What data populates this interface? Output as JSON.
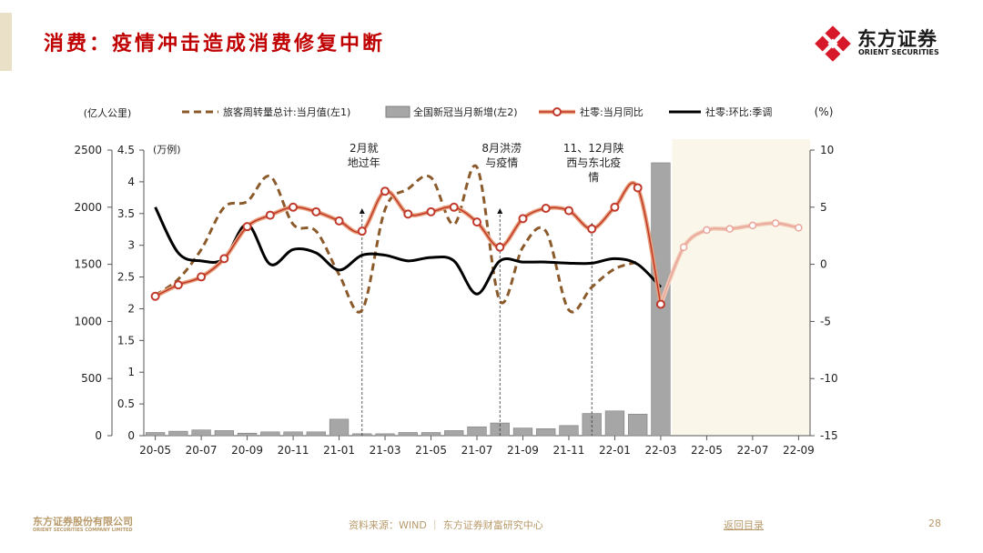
{
  "slide": {
    "title": "消费：疫情冲击造成消费修复中断",
    "logo_cn": "东方证券",
    "logo_en": "ORIENT SECURITIES",
    "footer_company": "东方证券股份有限公司",
    "footer_company_en": "ORIENT SECURITIES COMPANY LIMITED",
    "footer_source": "资料来源：WIND ｜ 东方证券财富研究中心",
    "footer_back": "返回目录",
    "page_number": "28",
    "colors": {
      "title": "#c00000",
      "accent": "#eadfc7",
      "footer": "#b89a6a",
      "logo_red": "#d7182a"
    }
  },
  "chart_data": {
    "type": "line",
    "unit_left1": "(亿人公里)",
    "unit_left2": "(万例)",
    "unit_right": "(%)",
    "x_ticks": [
      "20-05",
      "20-07",
      "20-09",
      "20-11",
      "21-01",
      "21-03",
      "21-05",
      "21-07",
      "21-09",
      "21-11",
      "22-01",
      "22-03",
      "22-05",
      "22-07",
      "22-09"
    ],
    "months": [
      "20-05",
      "20-06",
      "20-07",
      "20-08",
      "20-09",
      "20-10",
      "20-11",
      "20-12",
      "21-01",
      "21-02",
      "21-03",
      "21-04",
      "21-05",
      "21-06",
      "21-07",
      "21-08",
      "21-09",
      "21-10",
      "21-11",
      "21-12",
      "22-01",
      "22-02",
      "22-03",
      "22-04",
      "22-05",
      "22-06",
      "22-07",
      "22-08",
      "22-09"
    ],
    "y_left1": {
      "min": 0,
      "max": 2500,
      "ticks": [
        0,
        500,
        1000,
        1500,
        2000,
        2500
      ]
    },
    "y_left2": {
      "min": 0,
      "max": 4.5,
      "ticks": [
        "0",
        "0.5",
        "1",
        "1.5",
        "2",
        "2.5",
        "3",
        "3.5",
        "4",
        "4.5"
      ]
    },
    "y_right": {
      "min": -15,
      "max": 10,
      "ticks": [
        -15,
        -10,
        -5,
        0,
        5,
        10
      ]
    },
    "forecast_start": "22-04",
    "forecast_color": "#fbf6ea",
    "series": [
      {
        "name": "旅客周转量总计:当月值(左1)",
        "style": "dashed",
        "axis": "left1",
        "color": "#8b5a2b",
        "values": [
          1230,
          1370,
          1630,
          2000,
          2050,
          2270,
          1850,
          1790,
          1410,
          1100,
          1980,
          2160,
          2260,
          1850,
          2350,
          1180,
          1650,
          1790,
          1100,
          1300,
          1460,
          1520,
          null,
          null,
          null,
          null,
          null,
          null,
          null
        ]
      },
      {
        "name": "全国新冠当月新增(左2)",
        "style": "bar",
        "axis": "left2",
        "color": "#a6a6a6",
        "values": [
          0.05,
          0.07,
          0.09,
          0.08,
          0.04,
          0.06,
          0.06,
          0.06,
          0.26,
          0.03,
          0.03,
          0.05,
          0.05,
          0.08,
          0.14,
          0.2,
          0.12,
          0.11,
          0.16,
          0.35,
          0.39,
          0.34,
          4.3,
          null,
          null,
          null,
          null,
          null,
          null
        ]
      },
      {
        "name": "社零:当月同比",
        "style": "marker-line",
        "axis": "right",
        "color": "#c0392b",
        "values": [
          -2.8,
          -1.8,
          -1.1,
          0.5,
          3.3,
          4.3,
          5.0,
          4.6,
          3.8,
          2.9,
          6.4,
          4.4,
          4.6,
          5.0,
          3.7,
          1.5,
          4.0,
          4.9,
          4.7,
          3.1,
          5.0,
          6.7,
          -3.5,
          1.5,
          3.0,
          3.1,
          3.4,
          3.6,
          3.2
        ]
      },
      {
        "name": "社零:环比:季调",
        "style": "line",
        "axis": "right",
        "color": "#000000",
        "values": [
          5.0,
          1.0,
          0.3,
          0.5,
          3.5,
          0.0,
          1.3,
          1.0,
          -0.5,
          0.8,
          0.8,
          0.3,
          0.6,
          0.3,
          -2.6,
          0.3,
          0.2,
          0.2,
          0.1,
          0.1,
          0.5,
          0.0,
          -2.0,
          null,
          null,
          null,
          null,
          null,
          null
        ]
      }
    ],
    "annotations": [
      {
        "month": "21-02",
        "lines": [
          "2月就",
          "地过年"
        ]
      },
      {
        "month": "21-08",
        "lines": [
          "8月洪涝",
          "与疫情"
        ]
      },
      {
        "month": "21-12",
        "lines": [
          "11、12月陕",
          "西与东北疫",
          "情"
        ]
      }
    ]
  }
}
